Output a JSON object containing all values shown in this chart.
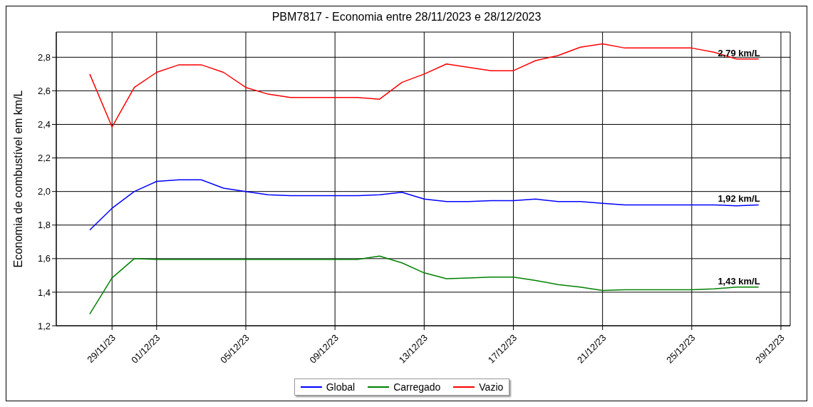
{
  "chart_data": {
    "type": "line",
    "title": "PBM7817 - Economia entre 28/11/2023 e 28/12/2023",
    "ylabel": "Economia de combustível em km/L",
    "x": [
      "2023-11-28",
      "2023-11-29",
      "2023-11-30",
      "2023-12-01",
      "2023-12-02",
      "2023-12-03",
      "2023-12-04",
      "2023-12-05",
      "2023-12-06",
      "2023-12-07",
      "2023-12-08",
      "2023-12-09",
      "2023-12-10",
      "2023-12-11",
      "2023-12-12",
      "2023-12-13",
      "2023-12-14",
      "2023-12-15",
      "2023-12-16",
      "2023-12-17",
      "2023-12-18",
      "2023-12-19",
      "2023-12-20",
      "2023-12-21",
      "2023-12-22",
      "2023-12-23",
      "2023-12-24",
      "2023-12-25",
      "2023-12-26",
      "2023-12-27",
      "2023-12-28"
    ],
    "series": [
      {
        "name": "Global",
        "color": "#0000ff",
        "values": [
          1.77,
          1.9,
          2.0,
          2.06,
          2.07,
          2.07,
          2.02,
          2.0,
          1.98,
          1.975,
          1.975,
          1.975,
          1.975,
          1.98,
          1.995,
          1.955,
          1.94,
          1.94,
          1.945,
          1.945,
          1.955,
          1.94,
          1.94,
          1.93,
          1.92,
          1.92,
          1.92,
          1.92,
          1.92,
          1.915,
          1.92
        ]
      },
      {
        "name": "Carregado",
        "color": "#008000",
        "values": [
          1.27,
          1.485,
          1.6,
          1.595,
          1.595,
          1.595,
          1.595,
          1.595,
          1.595,
          1.595,
          1.595,
          1.595,
          1.595,
          1.615,
          1.575,
          1.515,
          1.48,
          1.485,
          1.49,
          1.49,
          1.47,
          1.445,
          1.43,
          1.41,
          1.415,
          1.415,
          1.415,
          1.415,
          1.42,
          1.43,
          1.43
        ]
      },
      {
        "name": "Vazio",
        "color": "#ff0000",
        "values": [
          2.7,
          2.385,
          2.62,
          2.71,
          2.755,
          2.755,
          2.71,
          2.62,
          2.58,
          2.56,
          2.56,
          2.56,
          2.56,
          2.55,
          2.65,
          2.7,
          2.76,
          2.74,
          2.72,
          2.72,
          2.78,
          2.81,
          2.86,
          2.88,
          2.855,
          2.855,
          2.855,
          2.855,
          2.83,
          2.79,
          2.79
        ]
      }
    ],
    "annotations": [
      {
        "text": "2,79 km/L",
        "x": "2023-12-28",
        "y": 2.79
      },
      {
        "text": "1,92 km/L",
        "x": "2023-12-28",
        "y": 1.92
      },
      {
        "text": "1,43 km/L",
        "x": "2023-12-28",
        "y": 1.43
      }
    ],
    "xlim": [
      "2023-11-26T12:00",
      "2023-12-29T10:00"
    ],
    "xticks": [
      {
        "value": "2023-11-29",
        "label": "29/11/23"
      },
      {
        "value": "2023-12-01",
        "label": "01/12/23"
      },
      {
        "value": "2023-12-05",
        "label": "05/12/23"
      },
      {
        "value": "2023-12-09",
        "label": "09/12/23"
      },
      {
        "value": "2023-12-13",
        "label": "13/12/23"
      },
      {
        "value": "2023-12-17",
        "label": "17/12/23"
      },
      {
        "value": "2023-12-21",
        "label": "21/12/23"
      },
      {
        "value": "2023-12-25",
        "label": "25/12/23"
      },
      {
        "value": "2023-12-29",
        "label": "29/12/23"
      }
    ],
    "ylim": [
      1.2,
      2.95
    ],
    "yticks": [
      {
        "value": 1.2,
        "label": "1,2"
      },
      {
        "value": 1.4,
        "label": "1,4"
      },
      {
        "value": 1.6,
        "label": "1,6"
      },
      {
        "value": 1.8,
        "label": "1,8"
      },
      {
        "value": 2.0,
        "label": "2,0"
      },
      {
        "value": 2.2,
        "label": "2,2"
      },
      {
        "value": 2.4,
        "label": "2,4"
      },
      {
        "value": 2.6,
        "label": "2,6"
      },
      {
        "value": 2.8,
        "label": "2,8"
      }
    ],
    "grid": true,
    "legend": "bottom",
    "marker": "none",
    "line_style": "solid"
  }
}
